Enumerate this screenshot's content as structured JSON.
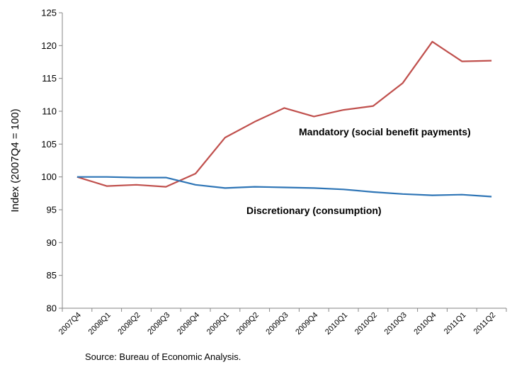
{
  "chart_data": {
    "type": "line",
    "ylabel": "Index  (2007Q4 = 100)",
    "ylim": [
      80,
      125
    ],
    "yticks": [
      80,
      85,
      90,
      95,
      100,
      105,
      110,
      115,
      120,
      125
    ],
    "grid": false,
    "categories": [
      "2007Q4",
      "2008Q1",
      "2008Q2",
      "2008Q3",
      "2008Q4",
      "2009Q1",
      "2009Q2",
      "2009Q3",
      "2009Q4",
      "2010Q1",
      "2010Q2",
      "2010Q3",
      "2010Q4",
      "2011Q1",
      "2011Q2"
    ],
    "series": [
      {
        "name": "Mandatory (social benefit payments)",
        "color": "#c0504d",
        "values": [
          100.0,
          98.6,
          98.8,
          98.5,
          100.5,
          106.0,
          108.4,
          110.5,
          109.2,
          110.2,
          110.8,
          114.3,
          120.6,
          117.6,
          117.7
        ]
      },
      {
        "name": "Discretionary (consumption)",
        "color": "#2e75b6",
        "values": [
          100.0,
          100.0,
          99.9,
          99.9,
          98.8,
          98.3,
          98.5,
          98.4,
          98.3,
          98.1,
          97.7,
          97.4,
          97.2,
          97.3,
          97.0
        ]
      }
    ]
  },
  "source": "Source: Bureau of Economic Analysis."
}
